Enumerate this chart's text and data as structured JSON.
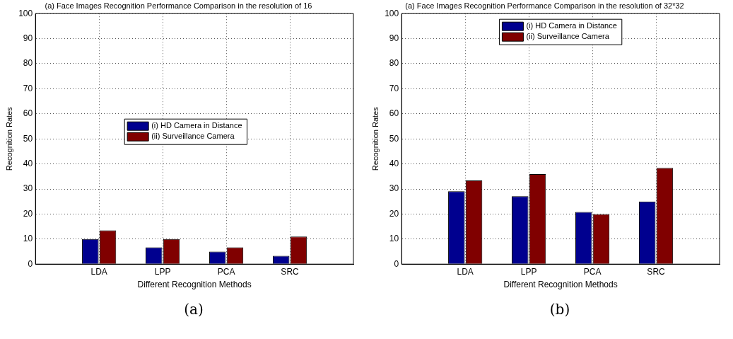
{
  "chart_data": [
    {
      "type": "bar",
      "title": "(a) Face Images Recognition Performance Comparison in the resolution of 16",
      "xlabel": "Different Recognition Methods",
      "ylabel": "Recognition Rates",
      "categories": [
        "LDA",
        "LPP",
        "PCA",
        "SRC"
      ],
      "series": [
        {
          "name": "(i) HD Camera in Distance",
          "color": "#00008f",
          "values": [
            10,
            6.7,
            5,
            3.3
          ]
        },
        {
          "name": "(ii) Surveillance Camera",
          "color": "#800000",
          "values": [
            13.5,
            10,
            6.7,
            11
          ]
        }
      ],
      "ylim": [
        0,
        100
      ],
      "yticks": [
        0,
        10,
        20,
        30,
        40,
        50,
        60,
        70,
        80,
        90,
        100
      ],
      "grid": true,
      "legend": "center",
      "annotations": [
        "(a)"
      ]
    },
    {
      "type": "bar",
      "title": "(a) Face Images Recognition Performance Comparison in the resolution of 32*32",
      "xlabel": "Different Recognition Methods",
      "ylabel": "Recognition Rates",
      "categories": [
        "LDA",
        "LPP",
        "PCA",
        "SRC"
      ],
      "series": [
        {
          "name": "(i) HD Camera in Distance",
          "color": "#00008f",
          "values": [
            29.1,
            27.1,
            20.8,
            25
          ]
        },
        {
          "name": "(ii) Surveillance Camera",
          "color": "#800000",
          "values": [
            33.4,
            35.9,
            20,
            38.4
          ]
        }
      ],
      "ylim": [
        0,
        100
      ],
      "yticks": [
        0,
        10,
        20,
        30,
        40,
        50,
        60,
        70,
        80,
        90,
        100
      ],
      "grid": true,
      "legend": "top",
      "annotations": [
        "(b)"
      ]
    }
  ]
}
